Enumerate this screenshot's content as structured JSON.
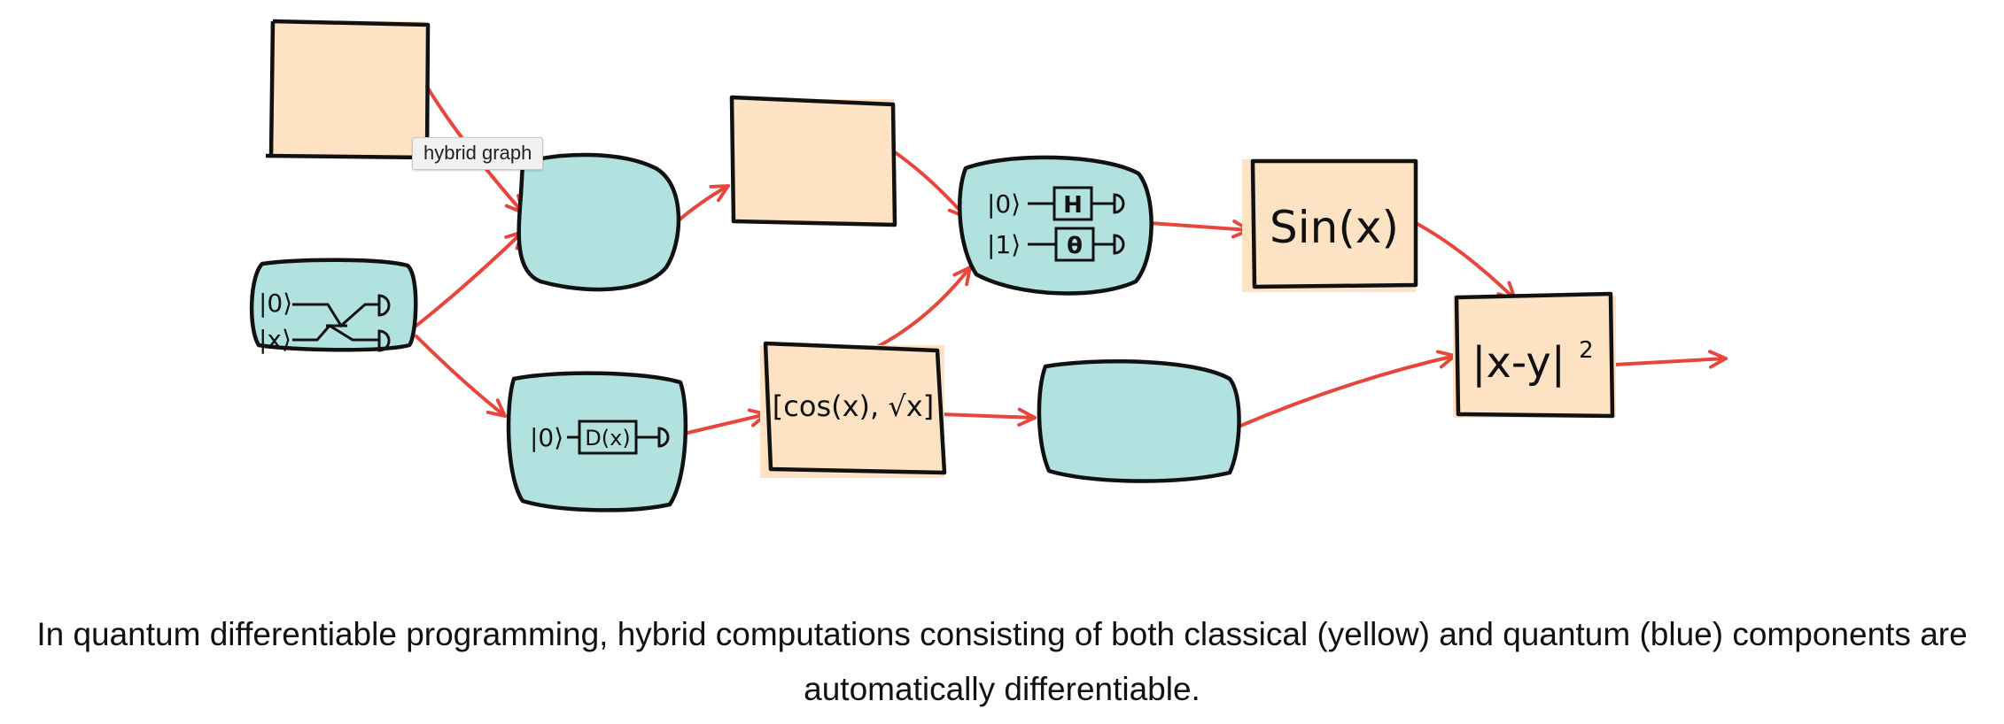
{
  "colors": {
    "classical": "#fde2c4",
    "quantum": "#b2e2e0",
    "edge": "#e8453c",
    "outline": "#111111"
  },
  "tooltip": {
    "text": "hybrid graph"
  },
  "nodes": {
    "left_circuit": {
      "line1": "|0⟩",
      "line2": "|x⟩"
    },
    "top_quantum_circuit": {
      "line1": "|0⟩",
      "gate1": "H",
      "line2": "|1⟩",
      "gate2": "θ"
    },
    "sin_box": {
      "label": "Sin(x)"
    },
    "bottom_quantum_circuit": {
      "line1": "|0⟩",
      "gate": "D(x)"
    },
    "cos_box": {
      "label": "[cos(x), √x]"
    },
    "cost_box": {
      "label": "|x-y|",
      "superscript": "2"
    }
  },
  "caption": {
    "text": "In quantum differentiable programming, hybrid computations consisting of both classical (yellow) and quantum (blue) components are automatically differentiable."
  }
}
